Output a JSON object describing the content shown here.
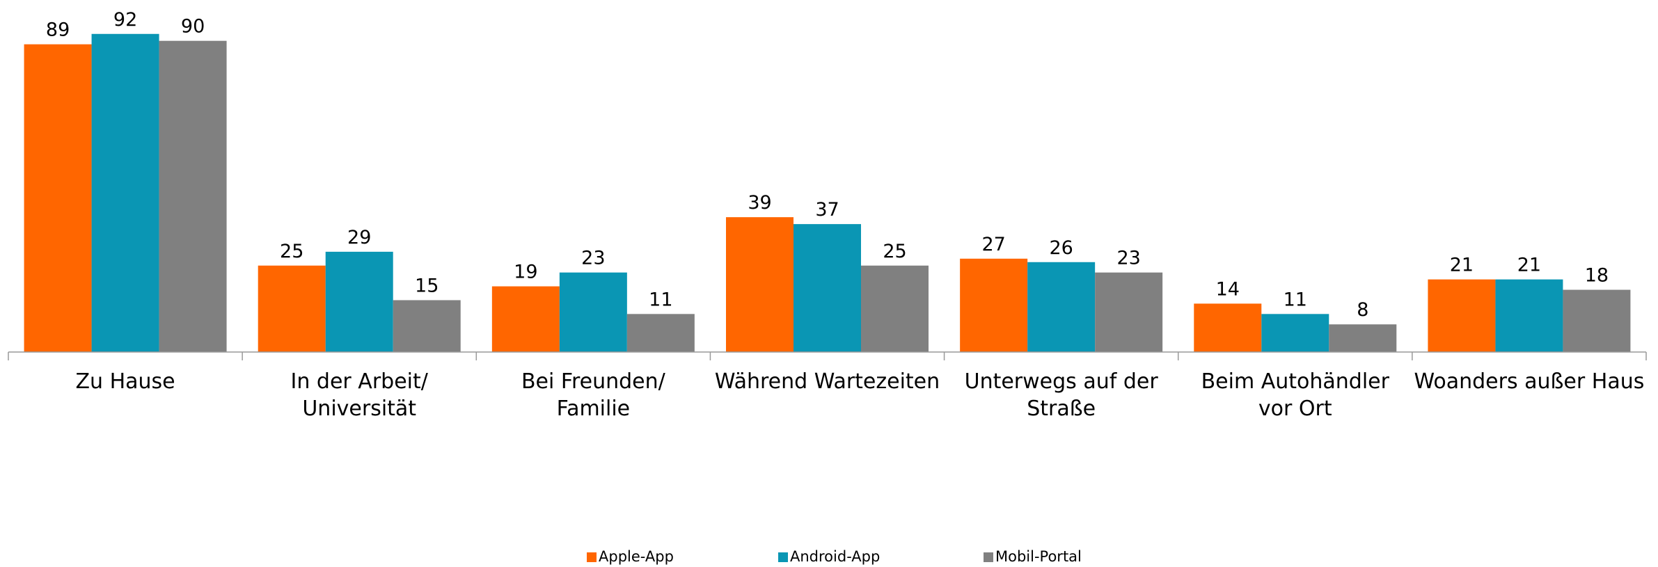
{
  "chart_data": {
    "type": "bar",
    "categories": [
      "Zu Hause",
      "In der Arbeit/\nUniversität",
      "Bei Freunden/\nFamilie",
      "Während Wartezeiten",
      "Unterwegs auf der\nStraße",
      "Beim Autohändler\nvor Ort",
      "Woanders außer Haus"
    ],
    "series": [
      {
        "name": "Apple-App",
        "color": "#ff6600",
        "values": [
          89,
          25,
          19,
          39,
          27,
          14,
          21
        ]
      },
      {
        "name": "Android-App",
        "color": "#0a96b4",
        "values": [
          92,
          29,
          23,
          37,
          26,
          11,
          21
        ]
      },
      {
        "name": "Mobil-Portal",
        "color": "#808080",
        "values": [
          90,
          15,
          11,
          25,
          23,
          8,
          18
        ]
      }
    ],
    "ylim": [
      0,
      100
    ],
    "legend": "bottom"
  }
}
